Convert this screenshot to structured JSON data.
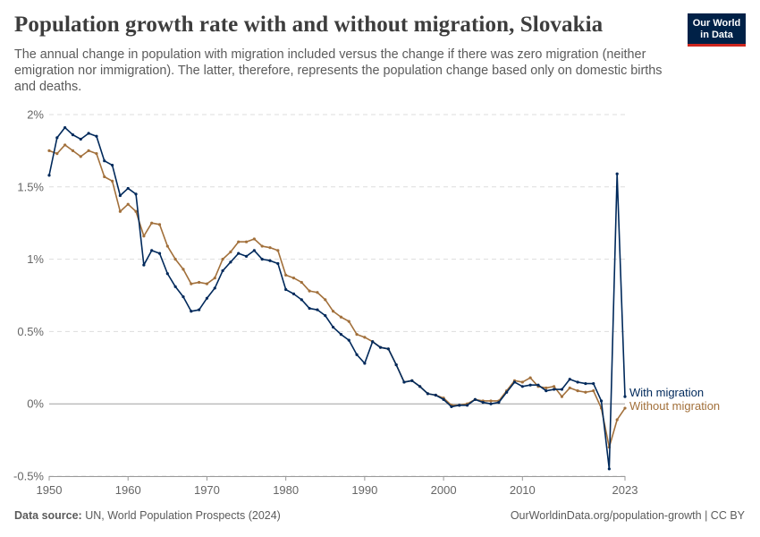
{
  "header": {
    "title": "Population growth rate with and without migration, Slovakia",
    "subtitle": "The annual change in population with migration included versus the change if there was zero migration (neither emigration nor immigration). The latter, therefore, represents the population change based only on domestic births and deaths.",
    "logo_line1": "Our World",
    "logo_line2": "in Data"
  },
  "footer": {
    "source_label": "Data source:",
    "source_text": "UN, World Population Prospects (2024)",
    "url_text": "OurWorldinData.org/population-growth | CC BY"
  },
  "colors": {
    "with_migration": "#00295b",
    "without_migration": "#a2703b",
    "grid": "#dddddd",
    "zero_line": "#a0a0a0"
  },
  "chart_data": {
    "type": "line",
    "title": "Population growth rate with and without migration, Slovakia",
    "xlabel": "",
    "ylabel": "",
    "xlim": [
      1950,
      2023
    ],
    "ylim": [
      -0.5,
      2
    ],
    "y_ticks": [
      -0.5,
      0,
      0.5,
      1,
      1.5,
      2
    ],
    "y_tick_labels": [
      "-0.5%",
      "0%",
      "0.5%",
      "1%",
      "1.5%",
      "2%"
    ],
    "x_ticks": [
      1950,
      1960,
      1970,
      1980,
      1990,
      2000,
      2010,
      2023
    ],
    "x_tick_labels": [
      "1950",
      "1960",
      "1970",
      "1980",
      "1990",
      "2000",
      "2010",
      "2023"
    ],
    "grid": true,
    "legend": "right-of-lines",
    "x": [
      1950,
      1951,
      1952,
      1953,
      1954,
      1955,
      1956,
      1957,
      1958,
      1959,
      1960,
      1961,
      1962,
      1963,
      1964,
      1965,
      1966,
      1967,
      1968,
      1969,
      1970,
      1971,
      1972,
      1973,
      1974,
      1975,
      1976,
      1977,
      1978,
      1979,
      1980,
      1981,
      1982,
      1983,
      1984,
      1985,
      1986,
      1987,
      1988,
      1989,
      1990,
      1991,
      1992,
      1993,
      1994,
      1995,
      1996,
      1997,
      1998,
      1999,
      2000,
      2001,
      2002,
      2003,
      2004,
      2005,
      2006,
      2007,
      2008,
      2009,
      2010,
      2011,
      2012,
      2013,
      2014,
      2015,
      2016,
      2017,
      2018,
      2019,
      2020,
      2021,
      2022,
      2023
    ],
    "series": [
      {
        "name": "With migration",
        "values": [
          1.58,
          1.84,
          1.91,
          1.86,
          1.83,
          1.87,
          1.85,
          1.68,
          1.65,
          1.44,
          1.49,
          1.45,
          0.96,
          1.06,
          1.04,
          0.9,
          0.81,
          0.74,
          0.64,
          0.65,
          0.73,
          0.8,
          0.92,
          0.98,
          1.04,
          1.02,
          1.06,
          1.0,
          0.99,
          0.97,
          0.79,
          0.76,
          0.72,
          0.66,
          0.65,
          0.61,
          0.53,
          0.48,
          0.44,
          0.34,
          0.28,
          0.43,
          0.39,
          0.38,
          0.27,
          0.15,
          0.16,
          0.12,
          0.07,
          0.06,
          0.03,
          -0.02,
          -0.01,
          -0.01,
          0.03,
          0.01,
          0.0,
          0.01,
          0.08,
          0.15,
          0.12,
          0.13,
          0.13,
          0.09,
          0.1,
          0.1,
          0.17,
          0.15,
          0.14,
          0.14,
          0.02,
          -0.45,
          1.59,
          0.05
        ]
      },
      {
        "name": "Without migration",
        "values": [
          1.75,
          1.73,
          1.79,
          1.75,
          1.71,
          1.75,
          1.73,
          1.57,
          1.54,
          1.33,
          1.38,
          1.33,
          1.16,
          1.25,
          1.24,
          1.09,
          1.0,
          0.93,
          0.83,
          0.84,
          0.83,
          0.87,
          1.0,
          1.05,
          1.12,
          1.12,
          1.14,
          1.09,
          1.08,
          1.06,
          0.89,
          0.87,
          0.84,
          0.78,
          0.77,
          0.72,
          0.64,
          0.6,
          0.57,
          0.48,
          0.46,
          0.43,
          0.39,
          0.38,
          0.27,
          0.15,
          0.16,
          0.12,
          0.07,
          0.06,
          0.04,
          -0.01,
          -0.01,
          0.0,
          0.03,
          0.02,
          0.02,
          0.02,
          0.09,
          0.16,
          0.15,
          0.18,
          0.12,
          0.11,
          0.12,
          0.05,
          0.11,
          0.09,
          0.08,
          0.09,
          -0.03,
          -0.3,
          -0.11,
          -0.03
        ]
      }
    ]
  }
}
